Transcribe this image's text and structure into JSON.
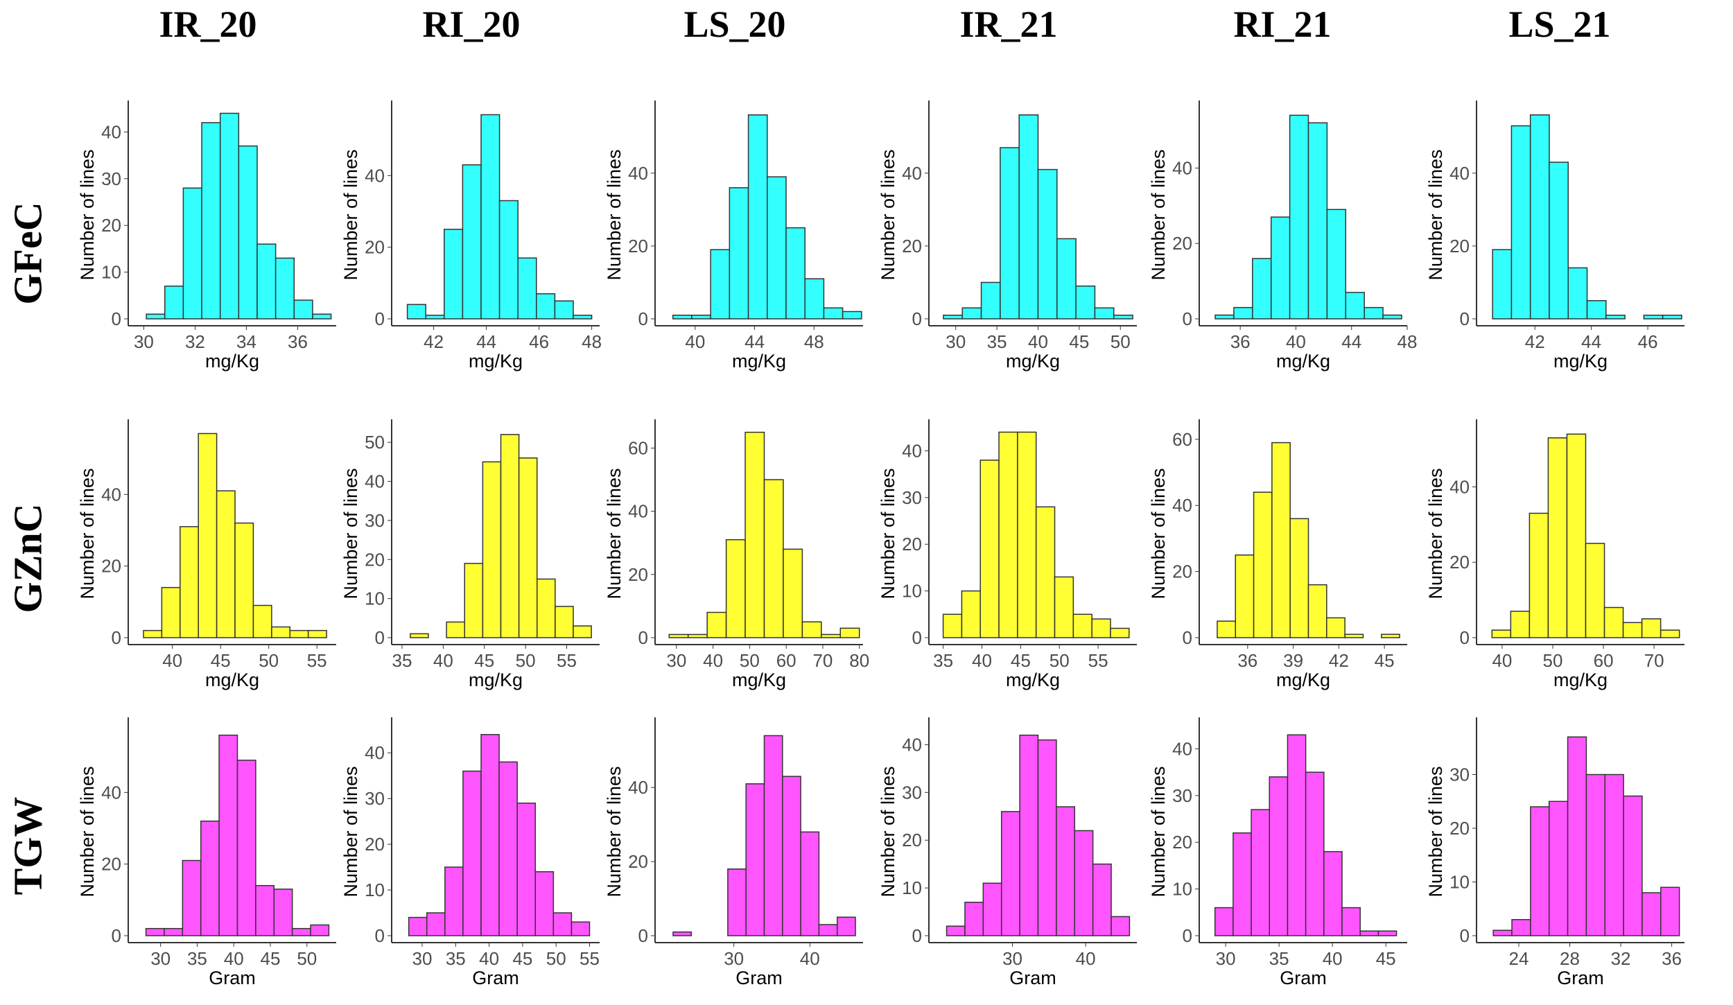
{
  "column_labels": [
    "IR_20",
    "RI_20",
    "LS_20",
    "IR_21",
    "RI_21",
    "LS_21"
  ],
  "row_labels": [
    "GFeC",
    "GZnC",
    "TGW"
  ],
  "colors": {
    "GFeC": "#33ffff",
    "GZnC": "#ffff33",
    "TGW": "#ff55ff"
  },
  "chart_data": [
    {
      "type": "bar",
      "row": "GFeC",
      "col": "IR_20",
      "xlabel": "mg/Kg",
      "ylabel": "Number of lines",
      "bin_start": 30.1,
      "bin_width": 0.72,
      "values": [
        1,
        7,
        28,
        42,
        44,
        37,
        16,
        13,
        4,
        1
      ],
      "xlim": [
        29.8,
        37.5
      ],
      "ylim": [
        0,
        46
      ],
      "xticks": [
        30,
        32,
        34,
        36
      ],
      "yticks": [
        0,
        10,
        20,
        30,
        40
      ]
    },
    {
      "type": "bar",
      "row": "GFeC",
      "col": "RI_20",
      "xlabel": "mg/Kg",
      "ylabel": "Number of lines",
      "bin_start": 41.0,
      "bin_width": 0.7,
      "values": [
        4,
        1,
        25,
        43,
        57,
        33,
        17,
        7,
        5,
        1
      ],
      "xlim": [
        40.8,
        48.3
      ],
      "ylim": [
        0,
        60
      ],
      "xticks": [
        42,
        44,
        46,
        48
      ],
      "yticks": [
        0,
        20,
        40
      ]
    },
    {
      "type": "bar",
      "row": "GFeC",
      "col": "LS_20",
      "xlabel": "mg/Kg",
      "ylabel": "Number of lines",
      "bin_start": 38.5,
      "bin_width": 1.27,
      "values": [
        1,
        1,
        19,
        36,
        56,
        39,
        25,
        11,
        3,
        2
      ],
      "xlim": [
        38,
        51.3
      ],
      "ylim": [
        0,
        59
      ],
      "xticks": [
        40,
        44,
        48
      ],
      "yticks": [
        0,
        20,
        40
      ]
    },
    {
      "type": "bar",
      "row": "GFeC",
      "col": "IR_21",
      "xlabel": "mg/Kg",
      "ylabel": "Number of lines",
      "bin_start": 28.5,
      "bin_width": 2.3,
      "values": [
        1,
        3,
        10,
        47,
        56,
        41,
        22,
        9,
        3,
        1
      ],
      "xlim": [
        28,
        52
      ],
      "ylim": [
        0,
        59
      ],
      "xticks": [
        30,
        35,
        40,
        45,
        50
      ],
      "yticks": [
        0,
        20,
        40
      ]
    },
    {
      "type": "bar",
      "row": "GFeC",
      "col": "RI_21",
      "xlabel": "mg/Kg",
      "ylabel": "Number of lines",
      "bin_start": 34.2,
      "bin_width": 1.34,
      "values": [
        1,
        3,
        16,
        27,
        54,
        52,
        29,
        7,
        3,
        1
      ],
      "xlim": [
        33.8,
        48
      ],
      "ylim": [
        0,
        57
      ],
      "xticks": [
        36,
        40,
        44,
        48
      ],
      "yticks": [
        0,
        20,
        40
      ]
    },
    {
      "type": "bar",
      "row": "GFeC",
      "col": "LS_21",
      "xlabel": "mg/Kg",
      "ylabel": "Number of lines",
      "bin_start": 40.5,
      "bin_width": 0.67,
      "values": [
        19,
        53,
        56,
        43,
        14,
        5,
        1,
        0,
        1,
        1
      ],
      "xlim": [
        40.3,
        47.3
      ],
      "ylim": [
        0,
        59
      ],
      "xticks": [
        42,
        44,
        46
      ],
      "yticks": [
        0,
        20,
        40
      ]
    },
    {
      "type": "bar",
      "row": "GZnC",
      "col": "IR_20",
      "xlabel": "mg/Kg",
      "ylabel": "Number of lines",
      "bin_start": 37,
      "bin_width": 1.9,
      "values": [
        2,
        14,
        31,
        57,
        41,
        32,
        9,
        3,
        2,
        2
      ],
      "xlim": [
        36.5,
        57
      ],
      "ylim": [
        0,
        60
      ],
      "xticks": [
        40,
        45,
        50,
        55
      ],
      "yticks": [
        0,
        20,
        40
      ]
    },
    {
      "type": "bar",
      "row": "GZnC",
      "col": "RI_20",
      "xlabel": "mg/Kg",
      "ylabel": "Number of lines",
      "bin_start": 36,
      "bin_width": 2.2,
      "values": [
        1,
        0,
        4,
        19,
        45,
        52,
        46,
        15,
        8,
        3
      ],
      "xlim": [
        35,
        59
      ],
      "ylim": [
        0,
        55
      ],
      "xticks": [
        35,
        40,
        45,
        50,
        55
      ],
      "yticks": [
        0,
        10,
        20,
        30,
        40,
        50
      ]
    },
    {
      "type": "bar",
      "row": "GZnC",
      "col": "LS_20",
      "xlabel": "mg/Kg",
      "ylabel": "Number of lines",
      "bin_start": 28,
      "bin_width": 5.2,
      "values": [
        1,
        1,
        8,
        31,
        65,
        50,
        28,
        5,
        1,
        3
      ],
      "xlim": [
        27,
        81
      ],
      "ylim": [
        0,
        68
      ],
      "xticks": [
        30,
        40,
        50,
        60,
        70,
        80
      ],
      "yticks": [
        0,
        20,
        40,
        60
      ]
    },
    {
      "type": "bar",
      "row": "GZnC",
      "col": "IR_21",
      "xlabel": "mg/Kg",
      "ylabel": "Number of lines",
      "bin_start": 35,
      "bin_width": 2.4,
      "values": [
        5,
        10,
        38,
        44,
        44,
        28,
        13,
        5,
        4,
        2
      ],
      "xlim": [
        34.5,
        60
      ],
      "ylim": [
        0,
        46
      ],
      "xticks": [
        35,
        40,
        45,
        50,
        55
      ],
      "yticks": [
        0,
        10,
        20,
        30,
        40
      ]
    },
    {
      "type": "bar",
      "row": "GZnC",
      "col": "RI_21",
      "xlabel": "mg/Kg",
      "ylabel": "Number of lines",
      "bin_start": 34,
      "bin_width": 1.2,
      "values": [
        5,
        25,
        44,
        59,
        36,
        16,
        6,
        1,
        0,
        1
      ],
      "xlim": [
        33.5,
        46.5
      ],
      "ylim": [
        0,
        65
      ],
      "xticks": [
        36,
        39,
        42,
        45
      ],
      "yticks": [
        0,
        20,
        40,
        60
      ]
    },
    {
      "type": "bar",
      "row": "GZnC",
      "col": "LS_21",
      "xlabel": "mg/Kg",
      "ylabel": "Number of lines",
      "bin_start": 38,
      "bin_width": 3.7,
      "values": [
        2,
        7,
        33,
        53,
        54,
        25,
        8,
        4,
        5,
        2
      ],
      "xlim": [
        37,
        76
      ],
      "ylim": [
        0,
        57
      ],
      "xticks": [
        40,
        50,
        60,
        70
      ],
      "yticks": [
        0,
        20,
        40
      ]
    },
    {
      "type": "bar",
      "row": "TGW",
      "col": "IR_20",
      "xlabel": "Gram",
      "ylabel": "Number of lines",
      "bin_start": 28,
      "bin_width": 2.5,
      "values": [
        2,
        2,
        21,
        32,
        56,
        49,
        14,
        13,
        2,
        3
      ],
      "xlim": [
        27,
        54
      ],
      "ylim": [
        0,
        60
      ],
      "xticks": [
        30,
        35,
        40,
        45,
        50
      ],
      "yticks": [
        0,
        20,
        40
      ]
    },
    {
      "type": "bar",
      "row": "TGW",
      "col": "RI_20",
      "xlabel": "Gram",
      "ylabel": "Number of lines",
      "bin_start": 28,
      "bin_width": 2.7,
      "values": [
        4,
        5,
        15,
        36,
        44,
        38,
        29,
        14,
        5,
        3
      ],
      "xlim": [
        27,
        56.5
      ],
      "ylim": [
        0,
        47
      ],
      "xticks": [
        30,
        35,
        40,
        45,
        50,
        55
      ],
      "yticks": [
        0,
        10,
        20,
        30,
        40
      ]
    },
    {
      "type": "bar",
      "row": "TGW",
      "col": "LS_20",
      "xlabel": "Gram",
      "ylabel": "Number of lines",
      "bin_start": 22,
      "bin_width": 2.4,
      "values": [
        1,
        0,
        0,
        18,
        41,
        54,
        43,
        28,
        3,
        5
      ],
      "xlim": [
        21,
        47
      ],
      "ylim": [
        0,
        58
      ],
      "xticks": [
        30,
        40
      ],
      "yticks": [
        0,
        20,
        40
      ]
    },
    {
      "type": "bar",
      "row": "TGW",
      "col": "IR_21",
      "xlabel": "Gram",
      "ylabel": "Number of lines",
      "bin_start": 21,
      "bin_width": 2.5,
      "values": [
        2,
        7,
        11,
        26,
        42,
        41,
        27,
        22,
        15,
        4
      ],
      "xlim": [
        20,
        47
      ],
      "ylim": [
        0,
        45
      ],
      "xticks": [
        30,
        40
      ],
      "yticks": [
        0,
        10,
        20,
        30,
        40
      ]
    },
    {
      "type": "bar",
      "row": "TGW",
      "col": "RI_21",
      "xlabel": "Gram",
      "ylabel": "Number of lines",
      "bin_start": 29,
      "bin_width": 1.7,
      "values": [
        6,
        22,
        27,
        34,
        43,
        35,
        18,
        6,
        1,
        1
      ],
      "xlim": [
        28.5,
        47
      ],
      "ylim": [
        0,
        46
      ],
      "xticks": [
        30,
        35,
        40,
        45
      ],
      "yticks": [
        0,
        10,
        20,
        30,
        40
      ]
    },
    {
      "type": "bar",
      "row": "TGW",
      "col": "LS_21",
      "xlabel": "Gram",
      "ylabel": "Number of lines",
      "bin_start": 22,
      "bin_width": 1.46,
      "values": [
        1,
        3,
        24,
        25,
        37,
        30,
        30,
        26,
        8,
        9
      ],
      "xlim": [
        21.5,
        37
      ],
      "ylim": [
        0,
        40
      ],
      "xticks": [
        24,
        28,
        32,
        36
      ],
      "yticks": [
        0,
        10,
        20,
        30
      ]
    }
  ]
}
